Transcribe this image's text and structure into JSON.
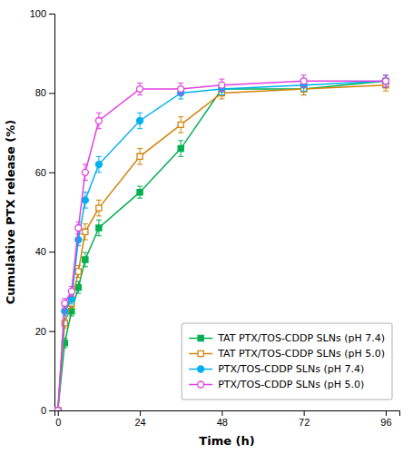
{
  "chart_data": {
    "type": "line",
    "xlabel": "Time (h)",
    "ylabel": "Cumulative PTX release (%)",
    "x": [
      0,
      2,
      4,
      6,
      8,
      12,
      24,
      36,
      48,
      72,
      96
    ],
    "series": [
      {
        "name": "TAT PTX/TOS-CDDP SLNs (pH 7.4)",
        "color": "#00b050",
        "marker": "square",
        "values": [
          0,
          17,
          25,
          31,
          38,
          46,
          55,
          66,
          81,
          81,
          83
        ],
        "errors": [
          0,
          1.2,
          1.2,
          1.5,
          1.8,
          2.0,
          1.5,
          2.0,
          1.5,
          1.5,
          1.5
        ]
      },
      {
        "name": "TAT PTX/TOS-CDDP SLNs (pH 5.0)",
        "color": "#d4830a",
        "marker": "square-open",
        "values": [
          0,
          22,
          27,
          35,
          45,
          51,
          64,
          72,
          80,
          81,
          82
        ],
        "errors": [
          0,
          1.2,
          1.2,
          1.5,
          2.0,
          2.0,
          2.0,
          2.0,
          1.5,
          1.5,
          1.5
        ]
      },
      {
        "name": "PTX/TOS-CDDP SLNs (pH 7.4)",
        "color": "#00b0f0",
        "marker": "circle",
        "values": [
          0,
          25,
          28,
          43,
          53,
          62,
          73,
          80,
          81,
          82,
          83
        ],
        "errors": [
          0,
          1.2,
          1.2,
          1.5,
          2.0,
          2.0,
          2.0,
          1.5,
          1.5,
          1.5,
          1.5
        ]
      },
      {
        "name": "PTX/TOS-CDDP SLNs (pH 5.0)",
        "color": "#e040e0",
        "marker": "circle-open",
        "values": [
          0,
          27,
          30,
          46,
          60,
          73,
          81,
          81,
          82,
          83,
          83
        ],
        "errors": [
          0,
          1.2,
          1.2,
          1.5,
          2.0,
          2.0,
          1.5,
          1.5,
          1.5,
          1.5,
          1.5
        ]
      }
    ],
    "xlim": [
      -1,
      100
    ],
    "ylim": [
      0,
      100
    ],
    "xticks": [
      0,
      24,
      48,
      72,
      96
    ],
    "yticks": [
      0,
      20,
      40,
      60,
      80,
      100
    ],
    "grid": false,
    "legend": "lower right"
  }
}
